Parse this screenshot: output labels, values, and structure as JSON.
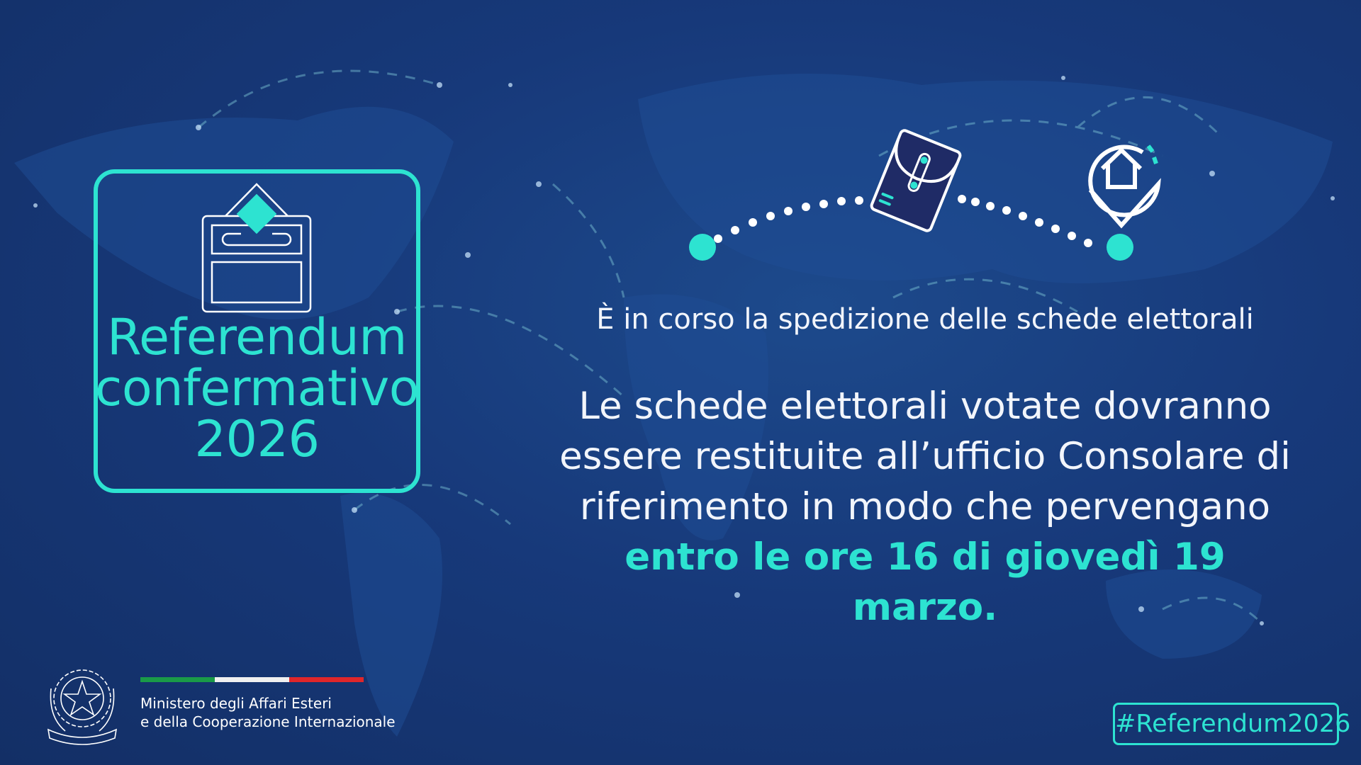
{
  "colors": {
    "accent": "#2de3d1",
    "background": "#17397a",
    "envelope": "#1f2b66"
  },
  "title_box": {
    "icon": "ballot-box-icon",
    "line1": "Referendum",
    "line2": "confermativo",
    "line3": "2026"
  },
  "route": {
    "icons": [
      "envelope-icon",
      "home-location-pin-icon"
    ]
  },
  "subtitle": "È in corso la spedizione delle schede elettorali",
  "paragraph": {
    "line1": "Le schede elettorali votate dovranno",
    "line2": "essere restituite all’ufficio Consolare di",
    "line3": "riferimento in modo che pervengano",
    "highlight": "entro le ore 16 di giovedì 19 marzo."
  },
  "footer": {
    "emblem": "Repubblica Italiana emblem",
    "emblem_text": "REPVBBLICA ITALIANA",
    "flag_colors": [
      "#1a9a48",
      "#f0f0f0",
      "#e0262a"
    ],
    "ministry_line1": "Ministero degli Affari Esteri",
    "ministry_line2": "e della Cooperazione Internazionale"
  },
  "hashtag": "#Referendum2026"
}
